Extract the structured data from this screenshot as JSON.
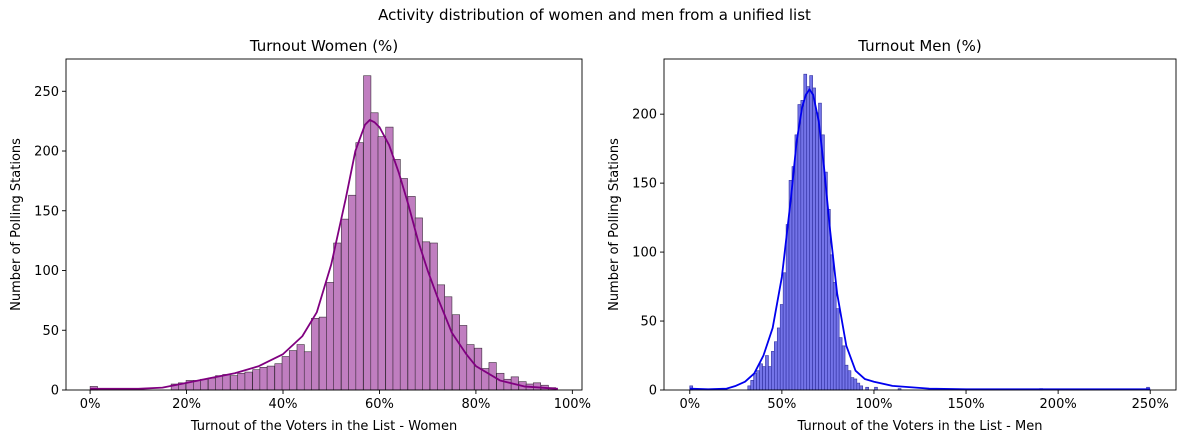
{
  "figure": {
    "suptitle": "Activity distribution of women and men from a unified list"
  },
  "chart_data": [
    {
      "type": "bar",
      "subtype": "histogram_with_kde",
      "title": "Turnout Women (%)",
      "xlabel": "Turnout of the Voters in the List - Women",
      "ylabel": "Number of Polling Stations",
      "xlim": [
        -5,
        102
      ],
      "ylim": [
        0,
        277
      ],
      "xticks": [
        0,
        20,
        40,
        60,
        80,
        100
      ],
      "xtick_labels": [
        "0%",
        "20%",
        "40%",
        "60%",
        "80%",
        "100%"
      ],
      "yticks": [
        0,
        50,
        100,
        150,
        200,
        250
      ],
      "ytick_labels": [
        "0",
        "50",
        "100",
        "150",
        "200",
        "250"
      ],
      "grid": false,
      "bar_color": "#c07ec0",
      "bar_edge_color": "#3a2a3a",
      "kde_color": "#800080",
      "bin_width": 1.53,
      "bins": [
        {
          "x0": 0,
          "count": 3
        },
        {
          "x0": 16.8,
          "count": 5
        },
        {
          "x0": 18.3,
          "count": 6
        },
        {
          "x0": 19.9,
          "count": 8
        },
        {
          "x0": 21.4,
          "count": 8
        },
        {
          "x0": 22.9,
          "count": 9
        },
        {
          "x0": 24.5,
          "count": 10
        },
        {
          "x0": 26.0,
          "count": 12
        },
        {
          "x0": 27.5,
          "count": 13
        },
        {
          "x0": 29.1,
          "count": 12
        },
        {
          "x0": 30.6,
          "count": 14
        },
        {
          "x0": 32.1,
          "count": 15
        },
        {
          "x0": 33.7,
          "count": 17
        },
        {
          "x0": 35.2,
          "count": 19
        },
        {
          "x0": 36.7,
          "count": 20
        },
        {
          "x0": 38.3,
          "count": 22
        },
        {
          "x0": 39.8,
          "count": 28
        },
        {
          "x0": 41.3,
          "count": 33
        },
        {
          "x0": 42.9,
          "count": 38
        },
        {
          "x0": 44.4,
          "count": 32
        },
        {
          "x0": 45.9,
          "count": 60
        },
        {
          "x0": 47.5,
          "count": 61
        },
        {
          "x0": 49.0,
          "count": 90
        },
        {
          "x0": 50.5,
          "count": 123
        },
        {
          "x0": 52.1,
          "count": 143
        },
        {
          "x0": 53.6,
          "count": 163
        },
        {
          "x0": 55.1,
          "count": 207
        },
        {
          "x0": 56.7,
          "count": 263
        },
        {
          "x0": 58.2,
          "count": 232
        },
        {
          "x0": 59.7,
          "count": 212
        },
        {
          "x0": 61.3,
          "count": 220
        },
        {
          "x0": 62.8,
          "count": 193
        },
        {
          "x0": 64.3,
          "count": 177
        },
        {
          "x0": 65.9,
          "count": 162
        },
        {
          "x0": 67.4,
          "count": 144
        },
        {
          "x0": 68.9,
          "count": 124
        },
        {
          "x0": 70.5,
          "count": 123
        },
        {
          "x0": 72.0,
          "count": 88
        },
        {
          "x0": 73.5,
          "count": 78
        },
        {
          "x0": 75.1,
          "count": 63
        },
        {
          "x0": 76.6,
          "count": 54
        },
        {
          "x0": 78.1,
          "count": 38
        },
        {
          "x0": 79.7,
          "count": 35
        },
        {
          "x0": 81.2,
          "count": 18
        },
        {
          "x0": 82.7,
          "count": 23
        },
        {
          "x0": 84.3,
          "count": 14
        },
        {
          "x0": 85.8,
          "count": 9
        },
        {
          "x0": 87.3,
          "count": 11
        },
        {
          "x0": 88.9,
          "count": 7
        },
        {
          "x0": 90.4,
          "count": 5
        },
        {
          "x0": 91.9,
          "count": 6
        },
        {
          "x0": 93.5,
          "count": 4
        },
        {
          "x0": 95.0,
          "count": 2
        }
      ],
      "kde": {
        "x": [
          0,
          10,
          15,
          20,
          25,
          30,
          35,
          40,
          44,
          47,
          50,
          53,
          55,
          57,
          58,
          59,
          60,
          62,
          64,
          66,
          68,
          70,
          72,
          75,
          78,
          80,
          85,
          90,
          97
        ],
        "y": [
          1,
          1,
          2,
          6,
          10,
          14,
          20,
          30,
          45,
          65,
          105,
          160,
          200,
          222,
          226,
          224,
          220,
          205,
          182,
          155,
          125,
          100,
          78,
          48,
          30,
          20,
          8,
          3,
          1
        ]
      }
    },
    {
      "type": "bar",
      "subtype": "histogram_with_kde",
      "title": "Turnout Men (%)",
      "xlabel": "Turnout of the Voters in the List - Men",
      "ylabel": "Number of Polling Stations",
      "xlim": [
        -14,
        264
      ],
      "ylim": [
        0,
        240
      ],
      "xticks": [
        0,
        50,
        100,
        150,
        200,
        250
      ],
      "xtick_labels": [
        "0%",
        "50%",
        "100%",
        "150%",
        "200%",
        "250%"
      ],
      "yticks": [
        0,
        50,
        100,
        150,
        200
      ],
      "ytick_labels": [
        "0",
        "50",
        "100",
        "150",
        "200"
      ],
      "grid": false,
      "bar_color": "#7474e8",
      "bar_edge_color": "#3030a0",
      "kde_color": "#0000ee",
      "bin_width": 1.6,
      "bins": [
        {
          "x0": 0,
          "count": 3
        },
        {
          "x0": 31.5,
          "count": 3
        },
        {
          "x0": 33.1,
          "count": 7
        },
        {
          "x0": 34.7,
          "count": 12
        },
        {
          "x0": 36.3,
          "count": 14
        },
        {
          "x0": 37.9,
          "count": 19
        },
        {
          "x0": 39.5,
          "count": 17
        },
        {
          "x0": 41.1,
          "count": 25
        },
        {
          "x0": 42.7,
          "count": 17
        },
        {
          "x0": 44.3,
          "count": 28
        },
        {
          "x0": 45.9,
          "count": 35
        },
        {
          "x0": 47.5,
          "count": 45
        },
        {
          "x0": 49.1,
          "count": 62
        },
        {
          "x0": 50.7,
          "count": 85
        },
        {
          "x0": 52.3,
          "count": 120
        },
        {
          "x0": 53.9,
          "count": 152
        },
        {
          "x0": 55.5,
          "count": 162
        },
        {
          "x0": 57.1,
          "count": 185
        },
        {
          "x0": 58.7,
          "count": 207
        },
        {
          "x0": 60.3,
          "count": 210
        },
        {
          "x0": 61.9,
          "count": 229
        },
        {
          "x0": 63.5,
          "count": 220
        },
        {
          "x0": 65.1,
          "count": 228
        },
        {
          "x0": 66.7,
          "count": 219
        },
        {
          "x0": 68.3,
          "count": 201
        },
        {
          "x0": 69.9,
          "count": 208
        },
        {
          "x0": 71.5,
          "count": 185
        },
        {
          "x0": 73.1,
          "count": 158
        },
        {
          "x0": 74.7,
          "count": 131
        },
        {
          "x0": 76.3,
          "count": 98
        },
        {
          "x0": 77.9,
          "count": 78
        },
        {
          "x0": 79.5,
          "count": 59
        },
        {
          "x0": 81.1,
          "count": 38
        },
        {
          "x0": 82.7,
          "count": 32
        },
        {
          "x0": 84.3,
          "count": 18
        },
        {
          "x0": 85.9,
          "count": 14
        },
        {
          "x0": 87.5,
          "count": 9
        },
        {
          "x0": 89.1,
          "count": 8
        },
        {
          "x0": 90.7,
          "count": 5
        },
        {
          "x0": 92.3,
          "count": 3
        },
        {
          "x0": 95.5,
          "count": 2
        },
        {
          "x0": 100.3,
          "count": 2
        },
        {
          "x0": 113.1,
          "count": 1
        },
        {
          "x0": 190.0,
          "count": 1
        },
        {
          "x0": 248.0,
          "count": 2
        }
      ],
      "kde": {
        "x": [
          0,
          10,
          20,
          25,
          30,
          35,
          40,
          45,
          50,
          55,
          58,
          61,
          63,
          65,
          67,
          70,
          73,
          76,
          80,
          85,
          90,
          95,
          100,
          110,
          120,
          130,
          150,
          200,
          250
        ],
        "y": [
          1,
          0.5,
          1,
          3,
          6,
          12,
          25,
          45,
          82,
          140,
          180,
          205,
          214,
          218,
          214,
          195,
          160,
          118,
          70,
          32,
          14,
          8,
          6,
          3,
          2,
          1,
          0.5,
          0.5,
          0.5
        ]
      }
    }
  ]
}
